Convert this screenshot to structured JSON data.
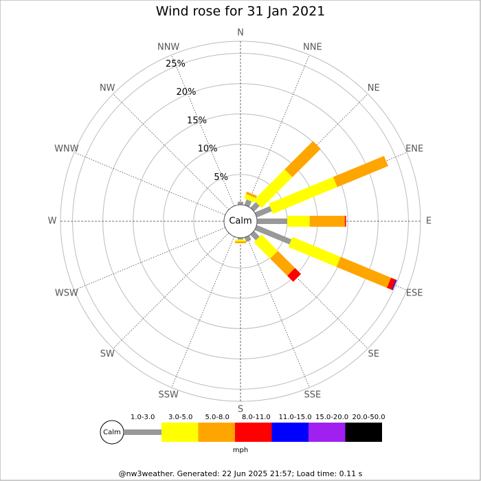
{
  "chart_data": {
    "type": "windrose",
    "title": "Wind rose for 31 Jan 2021",
    "categories": [
      "N",
      "NNE",
      "NE",
      "ENE",
      "E",
      "ESE",
      "SE",
      "SSE",
      "S",
      "SSW",
      "SW",
      "WSW",
      "W",
      "WNW",
      "NW",
      "NNW"
    ],
    "series": [
      {
        "name": "1.0-3.0",
        "color": "#999999",
        "values": [
          0.5,
          1.0,
          1.3,
          2.7,
          5.0,
          6.2,
          1.3,
          0.8,
          0.3,
          0,
          0,
          0,
          0,
          0,
          0,
          0
        ]
      },
      {
        "name": "3.0-5.0",
        "color": "#ffff00",
        "values": [
          0,
          0.8,
          7.2,
          11.5,
          3.7,
          8.6,
          3.8,
          0,
          0.3,
          0,
          0,
          0,
          0,
          0,
          0,
          0
        ]
      },
      {
        "name": "5.0-8.0",
        "color": "#ffa500",
        "values": [
          0,
          0.4,
          6.6,
          9.1,
          5.8,
          9.0,
          4.0,
          0,
          0.3,
          0,
          0,
          0,
          0,
          0,
          0,
          0
        ]
      },
      {
        "name": "8.0-11.0",
        "color": "#ff0000",
        "values": [
          0,
          0,
          0,
          0,
          0.2,
          0.9,
          1.4,
          0,
          0,
          0,
          0,
          0,
          0,
          0,
          0,
          0
        ]
      },
      {
        "name": "11.0-15.0",
        "color": "#0000ff",
        "values": [
          0,
          0,
          0,
          0,
          0,
          0.15,
          0,
          0,
          0,
          0,
          0,
          0,
          0,
          0,
          0,
          0
        ]
      },
      {
        "name": "15.0-20.0",
        "color": "#a020f0",
        "values": [
          0,
          0,
          0,
          0,
          0,
          0,
          0,
          0,
          0,
          0,
          0,
          0,
          0,
          0,
          0,
          0
        ]
      },
      {
        "name": "20.0-50.0",
        "color": "#000000",
        "values": [
          0,
          0,
          0,
          0,
          0,
          0,
          0,
          0,
          0,
          0,
          0,
          0,
          0,
          0,
          0,
          0
        ]
      }
    ],
    "rlim": [
      0,
      27
    ],
    "rticks": [
      {
        "value": 5,
        "label": "5%"
      },
      {
        "value": 10,
        "label": "10%"
      },
      {
        "value": 15,
        "label": "15%"
      },
      {
        "value": 20,
        "label": "20%"
      },
      {
        "value": 25,
        "label": "25%"
      }
    ],
    "calm_label": "Calm",
    "units": "mph",
    "footer": "@nw3weather. Generated: 22 Jun 2025 21:57; Load time: 0.11 s"
  }
}
